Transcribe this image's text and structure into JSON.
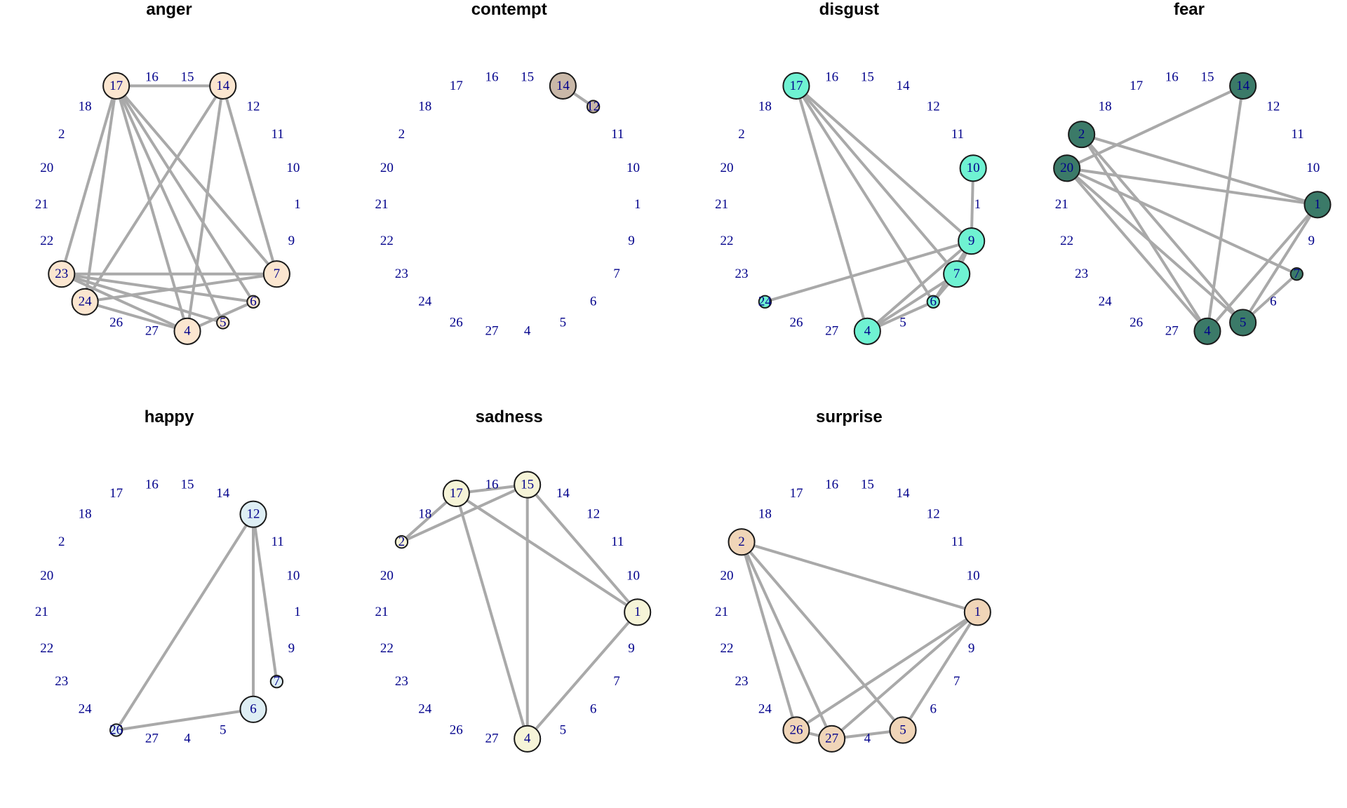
{
  "label_color": "#00008b",
  "edge_color": "#a9a9a9",
  "nodes": [
    "1",
    "10",
    "11",
    "12",
    "14",
    "15",
    "16",
    "17",
    "18",
    "2",
    "20",
    "21",
    "22",
    "23",
    "24",
    "26",
    "27",
    "4",
    "5",
    "6",
    "7",
    "9"
  ],
  "panels": [
    {
      "title": "anger",
      "node_color": "#fbe6d0",
      "edges": [
        [
          "17",
          "14"
        ],
        [
          "17",
          "23"
        ],
        [
          "17",
          "24"
        ],
        [
          "17",
          "4"
        ],
        [
          "17",
          "5"
        ],
        [
          "17",
          "6"
        ],
        [
          "17",
          "7"
        ],
        [
          "14",
          "24"
        ],
        [
          "14",
          "4"
        ],
        [
          "14",
          "7"
        ],
        [
          "23",
          "7"
        ],
        [
          "23",
          "6"
        ],
        [
          "23",
          "4"
        ],
        [
          "23",
          "5"
        ],
        [
          "24",
          "7"
        ],
        [
          "24",
          "4"
        ],
        [
          "4",
          "6"
        ]
      ],
      "sizes": {
        "17": "large",
        "14": "large",
        "23": "large",
        "24": "large",
        "7": "large",
        "4": "large",
        "6": "small",
        "5": "small"
      }
    },
    {
      "title": "contempt",
      "node_color": "#c9b8a8",
      "edges": [
        [
          "14",
          "12"
        ]
      ],
      "sizes": {
        "14": "large",
        "12": "small"
      }
    },
    {
      "title": "disgust",
      "node_color": "#6ff2d2",
      "edges": [
        [
          "17",
          "9"
        ],
        [
          "17",
          "7"
        ],
        [
          "17",
          "6"
        ],
        [
          "17",
          "4"
        ],
        [
          "10",
          "9"
        ],
        [
          "9",
          "24"
        ],
        [
          "9",
          "7"
        ],
        [
          "9",
          "4"
        ],
        [
          "9",
          "6"
        ],
        [
          "7",
          "4"
        ],
        [
          "7",
          "6"
        ],
        [
          "4",
          "6"
        ]
      ],
      "sizes": {
        "17": "large",
        "10": "large",
        "9": "large",
        "7": "large",
        "4": "large",
        "6": "small",
        "24": "small"
      }
    },
    {
      "title": "fear",
      "node_color": "#3b7a68",
      "edges": [
        [
          "14",
          "20"
        ],
        [
          "14",
          "4"
        ],
        [
          "2",
          "1"
        ],
        [
          "2",
          "4"
        ],
        [
          "2",
          "5"
        ],
        [
          "20",
          "1"
        ],
        [
          "20",
          "4"
        ],
        [
          "20",
          "5"
        ],
        [
          "20",
          "7"
        ],
        [
          "1",
          "4"
        ],
        [
          "1",
          "5"
        ],
        [
          "5",
          "7"
        ]
      ],
      "sizes": {
        "14": "large",
        "2": "large",
        "20": "large",
        "1": "large",
        "4": "large",
        "5": "large",
        "7": "small"
      }
    },
    {
      "title": "happy",
      "node_color": "#deeef4",
      "edges": [
        [
          "12",
          "26"
        ],
        [
          "12",
          "6"
        ],
        [
          "12",
          "7"
        ],
        [
          "6",
          "26"
        ]
      ],
      "sizes": {
        "12": "large",
        "6": "large",
        "7": "small",
        "26": "small"
      }
    },
    {
      "title": "sadness",
      "node_color": "#f6f4d8",
      "edges": [
        [
          "17",
          "15"
        ],
        [
          "17",
          "2"
        ],
        [
          "17",
          "1"
        ],
        [
          "17",
          "4"
        ],
        [
          "15",
          "2"
        ],
        [
          "15",
          "1"
        ],
        [
          "15",
          "4"
        ],
        [
          "1",
          "4"
        ]
      ],
      "sizes": {
        "17": "large",
        "15": "large",
        "1": "large",
        "4": "large",
        "2": "small"
      }
    },
    {
      "title": "surprise",
      "node_color": "#f0d5b8",
      "edges": [
        [
          "2",
          "1"
        ],
        [
          "2",
          "26"
        ],
        [
          "2",
          "27"
        ],
        [
          "2",
          "5"
        ],
        [
          "1",
          "26"
        ],
        [
          "1",
          "27"
        ],
        [
          "1",
          "5"
        ],
        [
          "26",
          "27"
        ],
        [
          "27",
          "5"
        ]
      ],
      "sizes": {
        "2": "large",
        "1": "large",
        "26": "large",
        "27": "large",
        "5": "large"
      }
    }
  ]
}
